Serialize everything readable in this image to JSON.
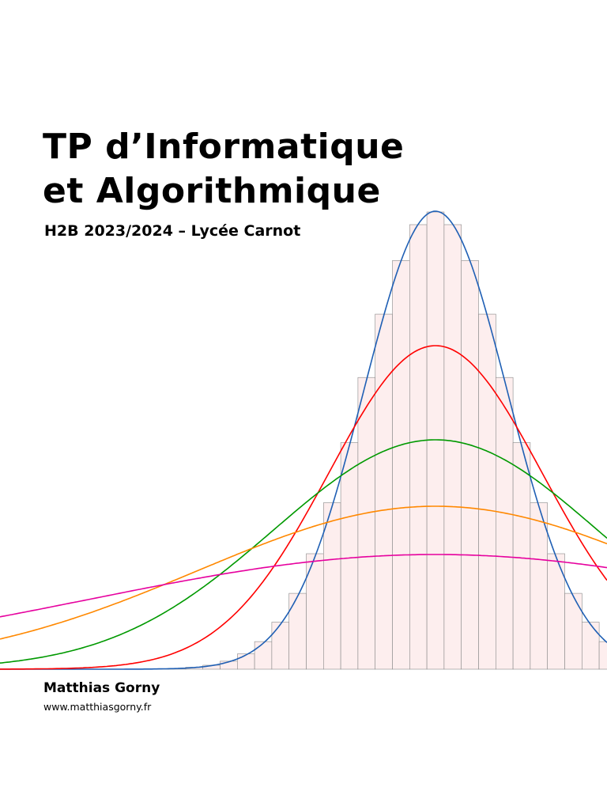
{
  "document": {
    "title_line_1": "TP d’Informatique",
    "title_line_2": "et Algorithmique",
    "subtitle": "H2B 2023/2024 – Lycée Carnot",
    "author": "Matthias Gorny",
    "website": "www.matthiasgorny.fr"
  },
  "illustration": {
    "histogram_fill": "#fdeeee",
    "histogram_stroke": "#888888",
    "curve_colors": [
      "#1f5fb4",
      "#ff0000",
      "#009900",
      "#ff8800",
      "#e6009e"
    ],
    "curve_icons": [
      "blue-density-curve",
      "red-density-curve",
      "green-density-curve",
      "orange-density-curve",
      "magenta-density-curve"
    ]
  }
}
